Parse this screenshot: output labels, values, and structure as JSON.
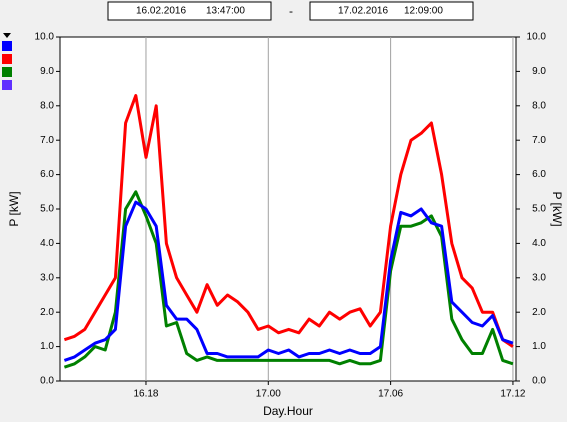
{
  "header": {
    "start": {
      "date": "16.02.2016",
      "time": "13:47:00"
    },
    "separator": "-",
    "end": {
      "date": "17.02.2016",
      "time": "12:09:00"
    }
  },
  "chart_data": {
    "type": "line",
    "ylabel": "P [kW]",
    "y2label": "P [kW]",
    "xlabel": "Day.Hour",
    "xlim": [
      13.783,
      36.15
    ],
    "xticks": [
      {
        "value": 18,
        "label": "16.18"
      },
      {
        "value": 24,
        "label": "17.00"
      },
      {
        "value": 30,
        "label": "17.06"
      },
      {
        "value": 36,
        "label": "17.12"
      }
    ],
    "ylim": [
      0,
      10
    ],
    "yticks": [
      {
        "value": 0,
        "label": "0.0"
      },
      {
        "value": 1,
        "label": "1.0"
      },
      {
        "value": 2,
        "label": "2.0"
      },
      {
        "value": 3,
        "label": "3.0"
      },
      {
        "value": 4,
        "label": "4.0"
      },
      {
        "value": 5,
        "label": "5.0"
      },
      {
        "value": 6,
        "label": "6.0"
      },
      {
        "value": 7,
        "label": "7.0"
      },
      {
        "value": 8,
        "label": "8.0"
      },
      {
        "value": 9,
        "label": "9.0"
      },
      {
        "value": 10,
        "label": "10.0"
      }
    ],
    "y2lim": [
      0,
      10
    ],
    "y2ticks": [
      {
        "value": 0,
        "label": "0.0"
      },
      {
        "value": 1,
        "label": "1.0"
      },
      {
        "value": 2,
        "label": "2.0"
      },
      {
        "value": 3,
        "label": "3.0"
      },
      {
        "value": 4,
        "label": "4.0"
      },
      {
        "value": 5,
        "label": "5.0"
      },
      {
        "value": 6,
        "label": "6.0"
      },
      {
        "value": 7,
        "label": "7.0"
      },
      {
        "value": 8,
        "label": "8.0"
      },
      {
        "value": 9,
        "label": "9.0"
      },
      {
        "value": 10,
        "label": "10.0"
      }
    ],
    "grid": "x",
    "x": [
      14,
      14.5,
      15,
      15.5,
      16,
      16.5,
      17,
      17.5,
      18,
      18.5,
      19,
      19.5,
      20,
      20.5,
      21,
      21.5,
      22,
      22.5,
      23,
      23.5,
      24,
      24.5,
      25,
      25.5,
      26,
      26.5,
      27,
      27.5,
      28,
      28.5,
      29,
      29.5,
      30,
      30.5,
      31,
      31.5,
      32,
      32.5,
      33,
      33.5,
      34,
      34.5,
      35,
      35.5,
      36
    ],
    "series": [
      {
        "color": "#0000ff",
        "values": [
          0.6,
          0.7,
          0.9,
          1.1,
          1.2,
          1.5,
          4.5,
          5.2,
          5.0,
          4.5,
          2.2,
          1.8,
          1.8,
          1.5,
          0.8,
          0.8,
          0.7,
          0.7,
          0.7,
          0.7,
          0.9,
          0.8,
          0.9,
          0.7,
          0.8,
          0.8,
          0.9,
          0.8,
          0.9,
          0.8,
          0.8,
          1.0,
          3.5,
          4.9,
          4.8,
          5.0,
          4.6,
          4.5,
          2.3,
          2.0,
          1.7,
          1.6,
          1.9,
          1.2,
          1.1
        ]
      },
      {
        "color": "#ff0000",
        "values": [
          1.2,
          1.3,
          1.5,
          2.0,
          2.5,
          3.0,
          7.5,
          8.3,
          6.5,
          8.0,
          4.0,
          3.0,
          2.5,
          2.0,
          2.8,
          2.2,
          2.5,
          2.3,
          2.0,
          1.5,
          1.6,
          1.4,
          1.5,
          1.4,
          1.8,
          1.6,
          2.0,
          1.8,
          2.0,
          2.1,
          1.6,
          2.0,
          4.5,
          6.0,
          7.0,
          7.2,
          7.5,
          6.0,
          4.0,
          3.0,
          2.7,
          2.0,
          2.0,
          1.2,
          1.0
        ]
      },
      {
        "color": "#008000",
        "values": [
          0.4,
          0.5,
          0.7,
          1.0,
          0.9,
          2.0,
          5.0,
          5.5,
          4.8,
          4.0,
          1.6,
          1.7,
          0.8,
          0.6,
          0.7,
          0.6,
          0.6,
          0.6,
          0.6,
          0.6,
          0.6,
          0.6,
          0.6,
          0.6,
          0.6,
          0.6,
          0.6,
          0.5,
          0.6,
          0.5,
          0.5,
          0.6,
          3.2,
          4.5,
          4.5,
          4.6,
          4.8,
          4.2,
          1.8,
          1.2,
          0.8,
          0.8,
          1.5,
          0.6,
          0.5
        ]
      }
    ]
  }
}
